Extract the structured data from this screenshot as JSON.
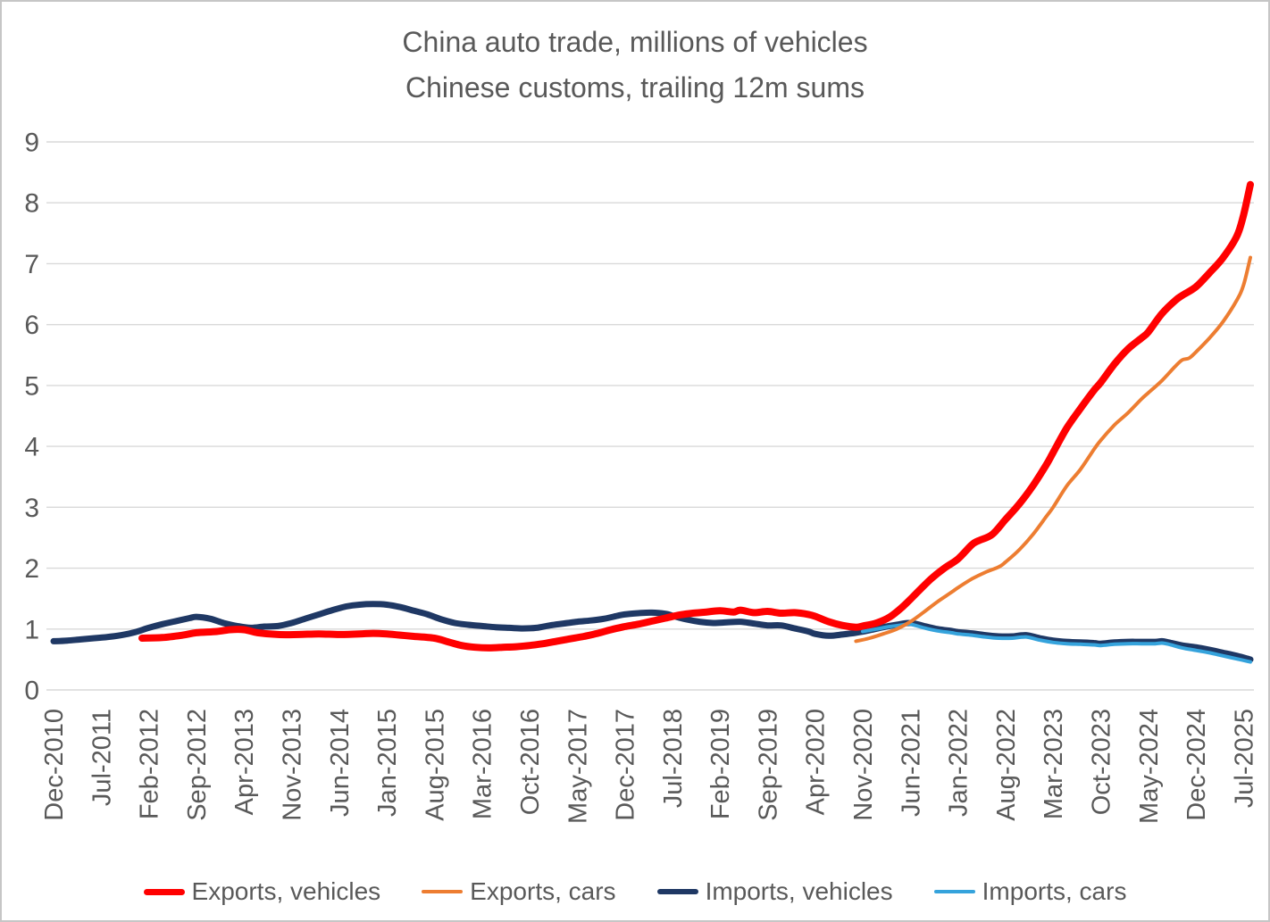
{
  "chart_data": {
    "type": "line",
    "title": "China auto trade, millions of vehicles",
    "subtitle": "Chinese customs, trailing 12m sums",
    "ylim": [
      0,
      9
    ],
    "y_ticks": [
      0,
      1,
      2,
      3,
      4,
      5,
      6,
      7,
      8,
      9
    ],
    "x_index_range": [
      0,
      176
    ],
    "x_ticks": [
      {
        "index": 0,
        "label": "Dec-2010"
      },
      {
        "index": 7,
        "label": "Jul-2011"
      },
      {
        "index": 14,
        "label": "Feb-2012"
      },
      {
        "index": 21,
        "label": "Sep-2012"
      },
      {
        "index": 28,
        "label": "Apr-2013"
      },
      {
        "index": 35,
        "label": "Nov-2013"
      },
      {
        "index": 42,
        "label": "Jun-2014"
      },
      {
        "index": 49,
        "label": "Jan-2015"
      },
      {
        "index": 56,
        "label": "Aug-2015"
      },
      {
        "index": 63,
        "label": "Mar-2016"
      },
      {
        "index": 70,
        "label": "Oct-2016"
      },
      {
        "index": 77,
        "label": "May-2017"
      },
      {
        "index": 84,
        "label": "Dec-2017"
      },
      {
        "index": 91,
        "label": "Jul-2018"
      },
      {
        "index": 98,
        "label": "Feb-2019"
      },
      {
        "index": 105,
        "label": "Sep-2019"
      },
      {
        "index": 112,
        "label": "Apr-2020"
      },
      {
        "index": 119,
        "label": "Nov-2020"
      },
      {
        "index": 126,
        "label": "Jun-2021"
      },
      {
        "index": 133,
        "label": "Jan-2022"
      },
      {
        "index": 140,
        "label": "Aug-2022"
      },
      {
        "index": 147,
        "label": "Mar-2023"
      },
      {
        "index": 154,
        "label": "Oct-2023"
      },
      {
        "index": 161,
        "label": "May-2024"
      },
      {
        "index": 168,
        "label": "Dec-2024"
      },
      {
        "index": 175,
        "label": "Jul-2025"
      }
    ],
    "grid": {
      "color": "#d9d9d9",
      "show_horizontal": true,
      "show_vertical": false
    },
    "axis_text_color": "#595959",
    "legend_position": "bottom",
    "series": [
      {
        "id": "exports-vehicles",
        "name": "Exports, vehicles",
        "color": "#ff0000",
        "line_width": 8,
        "z": 4,
        "points": [
          [
            13,
            0.85
          ],
          [
            16,
            0.86
          ],
          [
            19,
            0.9
          ],
          [
            21,
            0.94
          ],
          [
            24,
            0.96
          ],
          [
            26,
            0.99
          ],
          [
            28,
            0.99
          ],
          [
            30,
            0.94
          ],
          [
            33,
            0.91
          ],
          [
            36,
            0.91
          ],
          [
            39,
            0.92
          ],
          [
            42,
            0.91
          ],
          [
            45,
            0.92
          ],
          [
            47,
            0.93
          ],
          [
            49,
            0.92
          ],
          [
            51,
            0.9
          ],
          [
            53,
            0.88
          ],
          [
            56,
            0.85
          ],
          [
            58,
            0.79
          ],
          [
            60,
            0.73
          ],
          [
            62,
            0.7
          ],
          [
            64,
            0.69
          ],
          [
            66,
            0.7
          ],
          [
            68,
            0.71
          ],
          [
            70,
            0.73
          ],
          [
            72,
            0.76
          ],
          [
            74,
            0.8
          ],
          [
            76,
            0.84
          ],
          [
            78,
            0.88
          ],
          [
            80,
            0.93
          ],
          [
            82,
            0.99
          ],
          [
            84,
            1.04
          ],
          [
            86,
            1.08
          ],
          [
            88,
            1.13
          ],
          [
            90,
            1.18
          ],
          [
            92,
            1.23
          ],
          [
            94,
            1.26
          ],
          [
            96,
            1.28
          ],
          [
            98,
            1.3
          ],
          [
            100,
            1.28
          ],
          [
            101,
            1.31
          ],
          [
            103,
            1.27
          ],
          [
            105,
            1.29
          ],
          [
            107,
            1.26
          ],
          [
            109,
            1.27
          ],
          [
            111,
            1.24
          ],
          [
            112,
            1.21
          ],
          [
            114,
            1.12
          ],
          [
            116,
            1.06
          ],
          [
            118,
            1.03
          ],
          [
            119,
            1.05
          ],
          [
            121,
            1.1
          ],
          [
            123,
            1.2
          ],
          [
            125,
            1.38
          ],
          [
            127,
            1.6
          ],
          [
            129,
            1.82
          ],
          [
            131,
            2.0
          ],
          [
            133,
            2.15
          ],
          [
            135,
            2.38
          ],
          [
            136,
            2.45
          ],
          [
            138,
            2.55
          ],
          [
            140,
            2.8
          ],
          [
            142,
            3.05
          ],
          [
            144,
            3.35
          ],
          [
            146,
            3.7
          ],
          [
            147,
            3.9
          ],
          [
            149,
            4.3
          ],
          [
            151,
            4.62
          ],
          [
            153,
            4.92
          ],
          [
            154,
            5.05
          ],
          [
            156,
            5.35
          ],
          [
            158,
            5.6
          ],
          [
            160,
            5.78
          ],
          [
            161,
            5.88
          ],
          [
            163,
            6.18
          ],
          [
            165,
            6.4
          ],
          [
            166,
            6.48
          ],
          [
            168,
            6.62
          ],
          [
            170,
            6.85
          ],
          [
            172,
            7.1
          ],
          [
            174,
            7.45
          ],
          [
            175,
            7.8
          ],
          [
            176,
            8.3
          ]
        ]
      },
      {
        "id": "exports-cars",
        "name": "Exports, cars",
        "color": "#ed7d31",
        "line_width": 4,
        "z": 3,
        "points": [
          [
            118,
            0.8
          ],
          [
            120,
            0.85
          ],
          [
            122,
            0.92
          ],
          [
            124,
            1.0
          ],
          [
            126,
            1.12
          ],
          [
            128,
            1.28
          ],
          [
            130,
            1.45
          ],
          [
            132,
            1.6
          ],
          [
            133,
            1.68
          ],
          [
            135,
            1.82
          ],
          [
            137,
            1.93
          ],
          [
            139,
            2.02
          ],
          [
            140,
            2.1
          ],
          [
            142,
            2.3
          ],
          [
            144,
            2.55
          ],
          [
            146,
            2.85
          ],
          [
            147,
            3.0
          ],
          [
            149,
            3.35
          ],
          [
            151,
            3.62
          ],
          [
            153,
            3.95
          ],
          [
            154,
            4.1
          ],
          [
            156,
            4.35
          ],
          [
            158,
            4.55
          ],
          [
            160,
            4.78
          ],
          [
            161,
            4.88
          ],
          [
            163,
            5.08
          ],
          [
            165,
            5.32
          ],
          [
            166,
            5.42
          ],
          [
            167,
            5.45
          ],
          [
            168,
            5.55
          ],
          [
            170,
            5.78
          ],
          [
            172,
            6.05
          ],
          [
            174,
            6.4
          ],
          [
            175,
            6.65
          ],
          [
            176,
            7.1
          ]
        ]
      },
      {
        "id": "imports-vehicles",
        "name": "Imports, vehicles",
        "color": "#1f3864",
        "line_width": 7,
        "z": 1,
        "points": [
          [
            0,
            0.8
          ],
          [
            2,
            0.81
          ],
          [
            4,
            0.83
          ],
          [
            6,
            0.85
          ],
          [
            8,
            0.87
          ],
          [
            10,
            0.9
          ],
          [
            12,
            0.95
          ],
          [
            14,
            1.02
          ],
          [
            16,
            1.08
          ],
          [
            18,
            1.13
          ],
          [
            20,
            1.18
          ],
          [
            21,
            1.2
          ],
          [
            23,
            1.17
          ],
          [
            25,
            1.1
          ],
          [
            27,
            1.05
          ],
          [
            29,
            1.02
          ],
          [
            31,
            1.04
          ],
          [
            33,
            1.05
          ],
          [
            35,
            1.1
          ],
          [
            37,
            1.17
          ],
          [
            39,
            1.24
          ],
          [
            41,
            1.31
          ],
          [
            43,
            1.37
          ],
          [
            45,
            1.4
          ],
          [
            47,
            1.41
          ],
          [
            49,
            1.4
          ],
          [
            51,
            1.36
          ],
          [
            53,
            1.3
          ],
          [
            55,
            1.24
          ],
          [
            57,
            1.16
          ],
          [
            59,
            1.1
          ],
          [
            61,
            1.07
          ],
          [
            63,
            1.05
          ],
          [
            65,
            1.03
          ],
          [
            67,
            1.02
          ],
          [
            69,
            1.01
          ],
          [
            71,
            1.02
          ],
          [
            73,
            1.06
          ],
          [
            75,
            1.09
          ],
          [
            77,
            1.12
          ],
          [
            79,
            1.14
          ],
          [
            81,
            1.17
          ],
          [
            83,
            1.22
          ],
          [
            84,
            1.24
          ],
          [
            86,
            1.26
          ],
          [
            88,
            1.27
          ],
          [
            90,
            1.25
          ],
          [
            91,
            1.22
          ],
          [
            93,
            1.16
          ],
          [
            95,
            1.12
          ],
          [
            97,
            1.1
          ],
          [
            99,
            1.11
          ],
          [
            101,
            1.12
          ],
          [
            103,
            1.09
          ],
          [
            105,
            1.06
          ],
          [
            107,
            1.06
          ],
          [
            109,
            1.01
          ],
          [
            111,
            0.96
          ],
          [
            112,
            0.92
          ],
          [
            114,
            0.89
          ],
          [
            116,
            0.91
          ],
          [
            118,
            0.94
          ],
          [
            120,
            0.98
          ],
          [
            122,
            1.03
          ],
          [
            124,
            1.07
          ],
          [
            126,
            1.1
          ],
          [
            128,
            1.05
          ],
          [
            130,
            1.0
          ],
          [
            132,
            0.97
          ],
          [
            133,
            0.95
          ],
          [
            135,
            0.93
          ],
          [
            137,
            0.9
          ],
          [
            139,
            0.88
          ],
          [
            141,
            0.88
          ],
          [
            143,
            0.9
          ],
          [
            145,
            0.85
          ],
          [
            147,
            0.81
          ],
          [
            149,
            0.79
          ],
          [
            151,
            0.78
          ],
          [
            153,
            0.77
          ],
          [
            154,
            0.76
          ],
          [
            156,
            0.78
          ],
          [
            158,
            0.79
          ],
          [
            160,
            0.79
          ],
          [
            162,
            0.79
          ],
          [
            163,
            0.8
          ],
          [
            164,
            0.78
          ],
          [
            166,
            0.73
          ],
          [
            168,
            0.7
          ],
          [
            170,
            0.66
          ],
          [
            172,
            0.61
          ],
          [
            174,
            0.56
          ],
          [
            176,
            0.5
          ]
        ]
      },
      {
        "id": "imports-cars",
        "name": "Imports, cars",
        "color": "#35a3dc",
        "line_width": 4,
        "z": 2,
        "points": [
          [
            119,
            0.96
          ],
          [
            121,
            1.0
          ],
          [
            123,
            1.04
          ],
          [
            125,
            1.07
          ],
          [
            126,
            1.08
          ],
          [
            128,
            1.02
          ],
          [
            130,
            0.97
          ],
          [
            132,
            0.94
          ],
          [
            133,
            0.92
          ],
          [
            135,
            0.9
          ],
          [
            137,
            0.87
          ],
          [
            139,
            0.85
          ],
          [
            141,
            0.85
          ],
          [
            143,
            0.87
          ],
          [
            145,
            0.82
          ],
          [
            147,
            0.78
          ],
          [
            149,
            0.76
          ],
          [
            151,
            0.75
          ],
          [
            153,
            0.74
          ],
          [
            154,
            0.73
          ],
          [
            156,
            0.75
          ],
          [
            158,
            0.76
          ],
          [
            160,
            0.76
          ],
          [
            162,
            0.76
          ],
          [
            163,
            0.77
          ],
          [
            164,
            0.75
          ],
          [
            166,
            0.69
          ],
          [
            168,
            0.65
          ],
          [
            170,
            0.61
          ],
          [
            172,
            0.56
          ],
          [
            174,
            0.51
          ],
          [
            176,
            0.46
          ]
        ]
      }
    ]
  }
}
